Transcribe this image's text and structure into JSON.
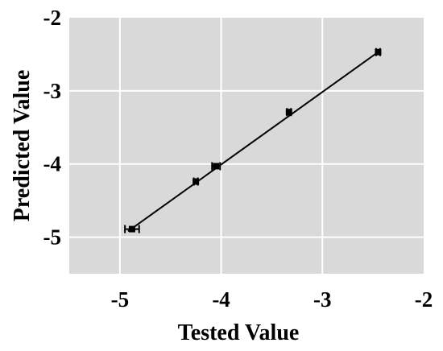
{
  "chart_data": {
    "type": "scatter",
    "title": "",
    "xlabel": "Tested Value",
    "ylabel": "Predicted Value",
    "xlim": [
      -5.5,
      -2
    ],
    "ylim": [
      -5.5,
      -2
    ],
    "x_ticks": [
      -5,
      -4,
      -3,
      -2
    ],
    "y_ticks": [
      -5,
      -4,
      -3,
      -2
    ],
    "x_tick_labels": [
      "-5",
      "-4",
      "-3",
      "-2"
    ],
    "y_tick_labels": [
      "-5",
      "-4",
      "-3",
      "-2"
    ],
    "grid": true,
    "background_color": "#d9d9d9",
    "grid_color": "#ffffff",
    "marker_color": "#000000",
    "points": [
      {
        "x": -4.88,
        "y": -4.89,
        "x_err": 0.07
      },
      {
        "x": -4.25,
        "y": -4.24,
        "x_err": 0.02
      },
      {
        "x": -4.05,
        "y": -4.03,
        "x_err": 0.04
      },
      {
        "x": -3.33,
        "y": -3.29,
        "x_err": 0.02
      },
      {
        "x": -2.45,
        "y": -2.47,
        "x_err": 0.02
      }
    ],
    "fit_line": {
      "x": [
        -4.92,
        -2.45
      ],
      "y": [
        -4.92,
        -2.47
      ]
    }
  }
}
